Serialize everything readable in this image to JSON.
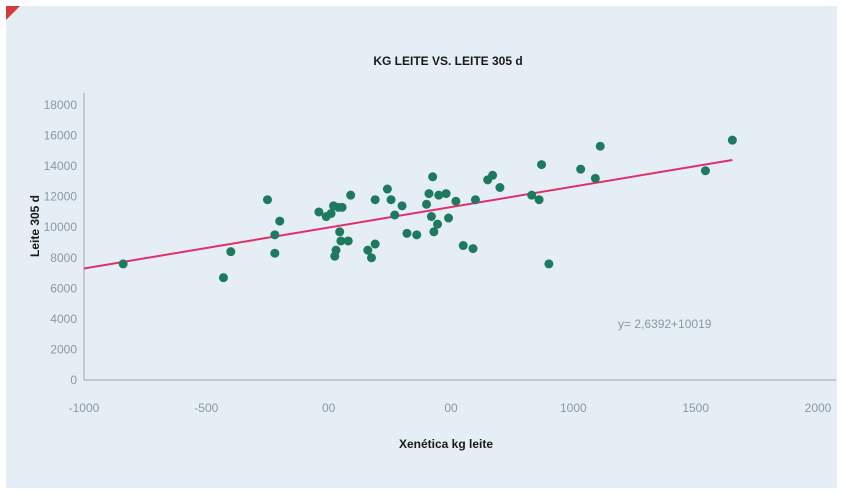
{
  "chart_data": {
    "type": "scatter",
    "title": "KG LEITE VS. LEITE 305 d",
    "xlabel": "Xenética kg leite",
    "ylabel": "Leite 305 d",
    "xlim": [
      -1000,
      2000
    ],
    "ylim": [
      0,
      18000
    ],
    "x_tick_labels": [
      "-1000",
      "-500",
      "00",
      "00",
      "1000",
      "1500",
      "2000"
    ],
    "y_ticks": [
      0,
      2000,
      4000,
      6000,
      8000,
      10000,
      12000,
      14000,
      16000,
      18000
    ],
    "grid": false,
    "equation": "y= 2,6392+10019",
    "colors": {
      "points": "#1e7a5f",
      "trendline": "#e0306b",
      "axis": "#9aa5ad"
    },
    "points": [
      {
        "x": -840,
        "y": 7600
      },
      {
        "x": -430,
        "y": 6700
      },
      {
        "x": -400,
        "y": 8400
      },
      {
        "x": -250,
        "y": 11800
      },
      {
        "x": -220,
        "y": 9500
      },
      {
        "x": -220,
        "y": 8300
      },
      {
        "x": -200,
        "y": 10400
      },
      {
        "x": -40,
        "y": 11000
      },
      {
        "x": -10,
        "y": 10700
      },
      {
        "x": 10,
        "y": 10900
      },
      {
        "x": 20,
        "y": 11400
      },
      {
        "x": 25,
        "y": 8100
      },
      {
        "x": 30,
        "y": 8500
      },
      {
        "x": 40,
        "y": 11300
      },
      {
        "x": 45,
        "y": 9700
      },
      {
        "x": 50,
        "y": 9100
      },
      {
        "x": 55,
        "y": 11300
      },
      {
        "x": 80,
        "y": 9100
      },
      {
        "x": 90,
        "y": 12100
      },
      {
        "x": 160,
        "y": 8500
      },
      {
        "x": 175,
        "y": 8000
      },
      {
        "x": 190,
        "y": 8900
      },
      {
        "x": 190,
        "y": 11800
      },
      {
        "x": 240,
        "y": 12500
      },
      {
        "x": 255,
        "y": 11800
      },
      {
        "x": 270,
        "y": 10800
      },
      {
        "x": 300,
        "y": 11400
      },
      {
        "x": 320,
        "y": 9600
      },
      {
        "x": 360,
        "y": 9500
      },
      {
        "x": 400,
        "y": 11500
      },
      {
        "x": 410,
        "y": 12200
      },
      {
        "x": 420,
        "y": 10700
      },
      {
        "x": 425,
        "y": 13300
      },
      {
        "x": 430,
        "y": 9700
      },
      {
        "x": 445,
        "y": 10200
      },
      {
        "x": 450,
        "y": 12100
      },
      {
        "x": 480,
        "y": 12200
      },
      {
        "x": 490,
        "y": 10600
      },
      {
        "x": 520,
        "y": 11700
      },
      {
        "x": 550,
        "y": 8800
      },
      {
        "x": 590,
        "y": 8600
      },
      {
        "x": 600,
        "y": 11800
      },
      {
        "x": 650,
        "y": 13100
      },
      {
        "x": 670,
        "y": 13400
      },
      {
        "x": 700,
        "y": 12600
      },
      {
        "x": 830,
        "y": 12100
      },
      {
        "x": 860,
        "y": 11800
      },
      {
        "x": 870,
        "y": 14100
      },
      {
        "x": 900,
        "y": 7600
      },
      {
        "x": 1030,
        "y": 13800
      },
      {
        "x": 1090,
        "y": 13200
      },
      {
        "x": 1110,
        "y": 15300
      },
      {
        "x": 1540,
        "y": 13700
      },
      {
        "x": 1650,
        "y": 15700
      }
    ],
    "trendline": {
      "x": [
        -1000,
        1650
      ],
      "y": [
        7300,
        14400
      ]
    }
  }
}
